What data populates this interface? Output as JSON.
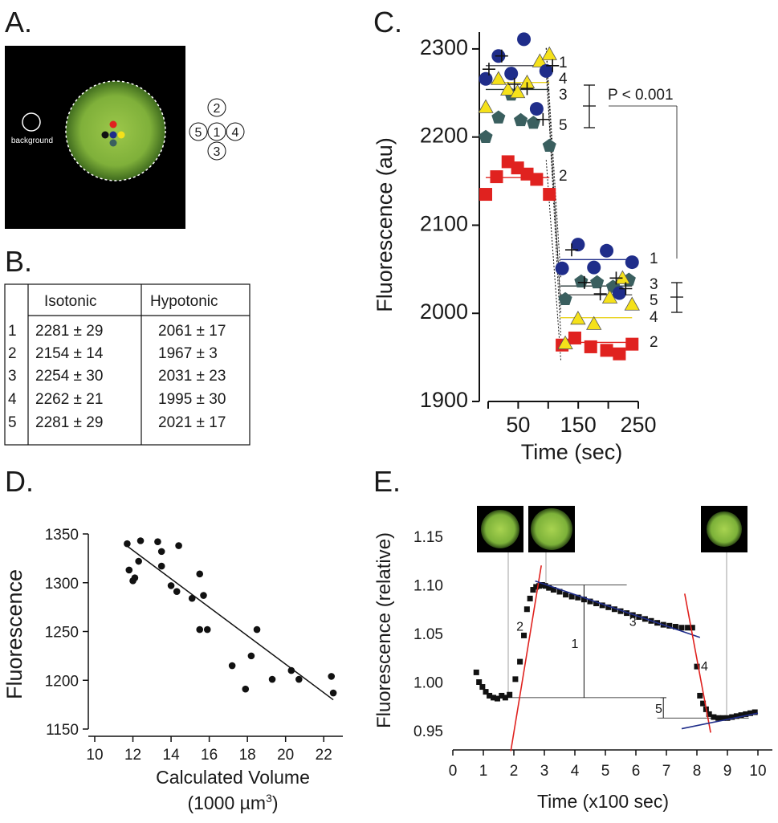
{
  "panels": {
    "A": {
      "label": "A.",
      "background_label": "background",
      "roi_legend": [
        "1",
        "2",
        "3",
        "4",
        "5"
      ],
      "roi_colors": {
        "1": "#1f2d8a",
        "2": "#e0221f",
        "3": "#3a5f5f",
        "4": "#f5e11a",
        "5": "#111111"
      }
    },
    "B": {
      "label": "B.",
      "table": {
        "headers": [
          "",
          "Isotonic",
          "Hypotonic"
        ],
        "rows": [
          [
            "1",
            "2281 ±  29",
            "2061 ± 17"
          ],
          [
            "2",
            "2154 ±  14",
            "1967 ±  3"
          ],
          [
            "3",
            "2254 ±  30",
            "2031 ± 23"
          ],
          [
            "4",
            "2262 ±  21",
            "1995 ± 30"
          ],
          [
            "5",
            "2281 ±  29",
            "2021 ± 17"
          ]
        ]
      }
    },
    "C": {
      "label": "C.",
      "annotation": "P < 0.001",
      "ylabel": "Fluorescence (au)",
      "xlabel": "Time (sec)"
    },
    "D": {
      "label": "D.",
      "ylabel": "Fluorescence",
      "xlabel": "Calculated Volume",
      "xlabel2": "(1000 µm",
      "xlabel2_sup": "3",
      "xlabel2_end": ")"
    },
    "E": {
      "label": "E.",
      "ylabel": "Fluorescence (relative)",
      "xlabel": "Time (x100 sec)",
      "segment_labels": [
        "1",
        "2",
        "3",
        "4",
        "5"
      ]
    }
  },
  "chart_data": [
    {
      "panel": "C",
      "type": "scatter",
      "xlabel": "Time (sec)",
      "ylabel": "Fluorescence (au)",
      "xlim": [
        -5,
        260
      ],
      "ylim": [
        1900,
        2330
      ],
      "xticks": [
        50,
        150,
        250
      ],
      "yticks": [
        1900,
        2000,
        2100,
        2200,
        2300
      ],
      "grid": false,
      "annotation": "P < 0.001",
      "series": [
        {
          "name": "1",
          "color": "#1f2d8a",
          "marker": "circle",
          "x": [
            -5,
            15,
            35,
            55,
            75,
            90,
            115,
            140,
            165,
            185,
            205,
            225
          ],
          "y": [
            2266,
            2292,
            2272,
            2311,
            2232,
            2275,
            2051,
            2078,
            2052,
            2071,
            2023,
            2058
          ],
          "isotonic_mean": 2281,
          "hypotonic_mean": 2061
        },
        {
          "name": "2",
          "color": "#e0221f",
          "marker": "square",
          "x": [
            -5,
            12,
            30,
            45,
            60,
            75,
            95,
            115,
            135,
            160,
            185,
            205,
            225
          ],
          "y": [
            2135,
            2155,
            2172,
            2165,
            2158,
            2152,
            2135,
            1964,
            1972,
            1962,
            1958,
            1954,
            1965
          ],
          "isotonic_mean": 2154,
          "hypotonic_mean": 1967
        },
        {
          "name": "3",
          "color": "#3a5f5f",
          "marker": "pentagon",
          "x": [
            -5,
            15,
            35,
            50,
            70,
            95,
            120,
            145,
            170,
            195,
            220
          ],
          "y": [
            2200,
            2222,
            2248,
            2219,
            2216,
            2190,
            2016,
            2036,
            2035,
            2030,
            2038
          ],
          "isotonic_mean": 2254,
          "hypotonic_mean": 2031
        },
        {
          "name": "4",
          "color": "#f5e11a",
          "marker": "triangle",
          "x": [
            -5,
            15,
            30,
            45,
            60,
            80,
            95,
            120,
            140,
            165,
            190,
            210,
            225
          ],
          "y": [
            2234,
            2266,
            2254,
            2251,
            2262,
            2286,
            2294,
            1966,
            1994,
            1988,
            2018,
            2040,
            2010
          ],
          "isotonic_mean": 2262,
          "hypotonic_mean": 1995
        },
        {
          "name": "5",
          "color": "#111111",
          "marker": "plus",
          "x": [
            0,
            20,
            40,
            60,
            85,
            100,
            130,
            150,
            175,
            200,
            215
          ],
          "y": [
            2277,
            2292,
            2260,
            2255,
            2220,
            2281,
            2072,
            2035,
            2022,
            2040,
            2028
          ],
          "isotonic_mean": 2281,
          "hypotonic_mean": 2021
        }
      ]
    },
    {
      "panel": "D",
      "type": "scatter",
      "xlabel": "Calculated Volume (1000 µm³)",
      "ylabel": "Fluorescence",
      "xlim": [
        10,
        23
      ],
      "ylim": [
        1150,
        1350
      ],
      "xticks": [
        10,
        12,
        14,
        16,
        18,
        20,
        22
      ],
      "yticks": [
        1150,
        1200,
        1250,
        1300,
        1350
      ],
      "x": [
        11.7,
        11.8,
        12.0,
        12.1,
        12.3,
        12.4,
        13.3,
        13.5,
        13.5,
        14.0,
        14.3,
        14.4,
        15.1,
        15.5,
        15.7,
        15.9,
        15.5,
        17.2,
        17.9,
        18.2,
        18.5,
        19.3,
        20.3,
        20.7,
        22.4,
        22.5
      ],
      "y": [
        1340,
        1313,
        1302,
        1305,
        1322,
        1343,
        1342,
        1317,
        1332,
        1297,
        1291,
        1338,
        1284,
        1309,
        1287,
        1252,
        1252,
        1215,
        1191,
        1225,
        1252,
        1201,
        1210,
        1201,
        1204,
        1187
      ],
      "fit_line": {
        "x": [
          11.6,
          22.5
        ],
        "y": [
          1339,
          1180
        ]
      }
    },
    {
      "panel": "E",
      "type": "scatter",
      "xlabel": "Time (x100 sec)",
      "ylabel": "Fluorescence (relative)",
      "xlim": [
        0,
        10
      ],
      "ylim": [
        0.95,
        1.15
      ],
      "xticks": [
        0,
        1,
        2,
        3,
        4,
        5,
        6,
        7,
        8,
        9,
        10
      ],
      "yticks": [
        0.95,
        1.0,
        1.05,
        1.1,
        1.15
      ],
      "x": [
        0.77,
        0.86,
        0.97,
        1.08,
        1.2,
        1.33,
        1.46,
        1.6,
        1.72,
        1.86,
        2.05,
        2.2,
        2.33,
        2.43,
        2.53,
        2.63,
        2.73,
        2.83,
        2.93,
        3.03,
        3.15,
        3.3,
        3.5,
        3.7,
        3.9,
        4.1,
        4.3,
        4.5,
        4.7,
        4.9,
        5.1,
        5.3,
        5.5,
        5.7,
        5.9,
        6.1,
        6.3,
        6.5,
        6.7,
        6.9,
        7.1,
        7.3,
        7.5,
        7.7,
        7.85,
        8.0,
        8.1,
        8.2,
        8.3,
        8.4,
        8.55,
        8.7,
        8.85,
        9.0,
        9.15,
        9.3,
        9.45,
        9.6,
        9.75,
        9.9
      ],
      "y": [
        1.01,
        1.0,
        0.995,
        0.99,
        0.986,
        0.984,
        0.983,
        0.986,
        0.984,
        0.987,
        1.003,
        1.021,
        1.048,
        1.075,
        1.086,
        1.095,
        1.098,
        1.099,
        1.1,
        1.099,
        1.097,
        1.095,
        1.093,
        1.09,
        1.088,
        1.087,
        1.085,
        1.083,
        1.081,
        1.079,
        1.077,
        1.075,
        1.073,
        1.071,
        1.069,
        1.067,
        1.065,
        1.063,
        1.061,
        1.059,
        1.058,
        1.057,
        1.056,
        1.056,
        1.056,
        1.016,
        0.986,
        0.978,
        0.972,
        0.967,
        0.964,
        0.963,
        0.963,
        0.963,
        0.964,
        0.965,
        0.966,
        0.967,
        0.968,
        0.969
      ],
      "fit_lines": [
        {
          "label": "2",
          "color": "#e0221f",
          "x": [
            1.9,
            2.9
          ],
          "y": [
            0.929,
            1.12
          ]
        },
        {
          "label": "3",
          "color": "#1f2d8a",
          "x": [
            2.7,
            8.1
          ],
          "y": [
            1.104,
            1.046
          ]
        },
        {
          "label": "4",
          "color": "#e0221f",
          "x": [
            7.6,
            8.45
          ],
          "y": [
            1.091,
            0.948
          ]
        },
        {
          "label": "5",
          "color": "#1f2d8a",
          "x": [
            7.5,
            10.0
          ],
          "y": [
            0.952,
            0.968
          ]
        }
      ]
    }
  ]
}
